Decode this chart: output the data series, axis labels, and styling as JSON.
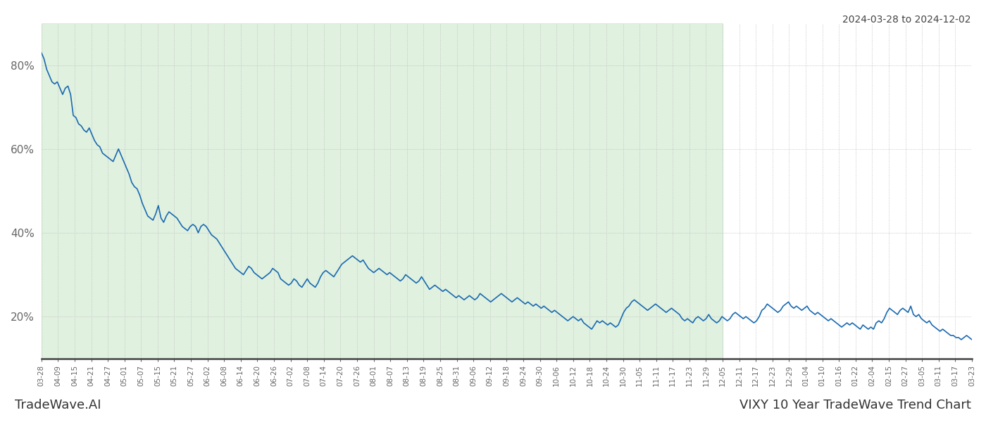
{
  "title_top_right": "2024-03-28 to 2024-12-02",
  "title_bottom_right": "VIXY 10 Year TradeWave Trend Chart",
  "title_bottom_left": "TradeWave.AI",
  "line_color": "#1a6ab0",
  "line_width": 1.2,
  "shaded_color": "#c8e6c8",
  "shaded_alpha": 0.55,
  "background_color": "#ffffff",
  "grid_color": "#bbbbbb",
  "grid_style": ":",
  "ylim": [
    10,
    90
  ],
  "yticks": [
    20,
    40,
    60,
    80
  ],
  "ytick_labels": [
    "20%",
    "40%",
    "60%",
    "80%"
  ],
  "x_labels": [
    "03-28",
    "04-09",
    "04-15",
    "04-21",
    "04-27",
    "05-01",
    "05-07",
    "05-15",
    "05-21",
    "05-27",
    "06-02",
    "06-08",
    "06-14",
    "06-20",
    "06-26",
    "07-02",
    "07-08",
    "07-14",
    "07-20",
    "07-26",
    "08-01",
    "08-07",
    "08-13",
    "08-19",
    "08-25",
    "08-31",
    "09-06",
    "09-12",
    "09-18",
    "09-24",
    "09-30",
    "10-06",
    "10-12",
    "10-18",
    "10-24",
    "10-30",
    "11-05",
    "11-11",
    "11-17",
    "11-23",
    "11-29",
    "12-05",
    "12-11",
    "12-17",
    "12-23",
    "12-29",
    "01-04",
    "01-10",
    "01-16",
    "01-22",
    "02-04",
    "02-15",
    "02-27",
    "03-05",
    "03-11",
    "03-17",
    "03-23"
  ],
  "shaded_x_start_label": "03-28",
  "shaded_x_end_label": "12-05",
  "data_y": [
    83.0,
    81.5,
    79.0,
    77.5,
    76.0,
    75.5,
    76.0,
    74.5,
    73.0,
    74.5,
    75.0,
    73.0,
    68.0,
    67.5,
    66.0,
    65.5,
    64.5,
    64.0,
    65.0,
    63.5,
    62.0,
    61.0,
    60.5,
    59.0,
    58.5,
    58.0,
    57.5,
    57.0,
    58.5,
    60.0,
    58.5,
    57.0,
    55.5,
    54.0,
    52.0,
    51.0,
    50.5,
    49.0,
    47.0,
    45.5,
    44.0,
    43.5,
    43.0,
    44.5,
    46.5,
    43.5,
    42.5,
    44.0,
    45.0,
    44.5,
    44.0,
    43.5,
    42.5,
    41.5,
    41.0,
    40.5,
    41.5,
    42.0,
    41.5,
    40.0,
    41.5,
    42.0,
    41.5,
    40.5,
    39.5,
    39.0,
    38.5,
    37.5,
    36.5,
    35.5,
    34.5,
    33.5,
    32.5,
    31.5,
    31.0,
    30.5,
    30.0,
    31.0,
    32.0,
    31.5,
    30.5,
    30.0,
    29.5,
    29.0,
    29.5,
    30.0,
    30.5,
    31.5,
    31.0,
    30.5,
    29.0,
    28.5,
    28.0,
    27.5,
    28.0,
    29.0,
    28.5,
    27.5,
    27.0,
    28.0,
    29.0,
    28.0,
    27.5,
    27.0,
    28.0,
    29.5,
    30.5,
    31.0,
    30.5,
    30.0,
    29.5,
    30.5,
    31.5,
    32.5,
    33.0,
    33.5,
    34.0,
    34.5,
    34.0,
    33.5,
    33.0,
    33.5,
    32.5,
    31.5,
    31.0,
    30.5,
    31.0,
    31.5,
    31.0,
    30.5,
    30.0,
    30.5,
    30.0,
    29.5,
    29.0,
    28.5,
    29.0,
    30.0,
    29.5,
    29.0,
    28.5,
    28.0,
    28.5,
    29.5,
    28.5,
    27.5,
    26.5,
    27.0,
    27.5,
    27.0,
    26.5,
    26.0,
    26.5,
    26.0,
    25.5,
    25.0,
    24.5,
    25.0,
    24.5,
    24.0,
    24.5,
    25.0,
    24.5,
    24.0,
    24.5,
    25.5,
    25.0,
    24.5,
    24.0,
    23.5,
    24.0,
    24.5,
    25.0,
    25.5,
    25.0,
    24.5,
    24.0,
    23.5,
    24.0,
    24.5,
    24.0,
    23.5,
    23.0,
    23.5,
    23.0,
    22.5,
    23.0,
    22.5,
    22.0,
    22.5,
    22.0,
    21.5,
    21.0,
    21.5,
    21.0,
    20.5,
    20.0,
    19.5,
    19.0,
    19.5,
    20.0,
    19.5,
    19.0,
    19.5,
    18.5,
    18.0,
    17.5,
    17.0,
    18.0,
    19.0,
    18.5,
    19.0,
    18.5,
    18.0,
    18.5,
    18.0,
    17.5,
    18.0,
    19.5,
    21.0,
    22.0,
    22.5,
    23.5,
    24.0,
    23.5,
    23.0,
    22.5,
    22.0,
    21.5,
    22.0,
    22.5,
    23.0,
    22.5,
    22.0,
    21.5,
    21.0,
    21.5,
    22.0,
    21.5,
    21.0,
    20.5,
    19.5,
    19.0,
    19.5,
    19.0,
    18.5,
    19.5,
    20.0,
    19.5,
    19.0,
    19.5,
    20.5,
    19.5,
    19.0,
    18.5,
    19.0,
    20.0,
    19.5,
    19.0,
    19.5,
    20.5,
    21.0,
    20.5,
    20.0,
    19.5,
    20.0,
    19.5,
    19.0,
    18.5,
    19.0,
    20.0,
    21.5,
    22.0,
    23.0,
    22.5,
    22.0,
    21.5,
    21.0,
    21.5,
    22.5,
    23.0,
    23.5,
    22.5,
    22.0,
    22.5,
    22.0,
    21.5,
    22.0,
    22.5,
    21.5,
    21.0,
    20.5,
    21.0,
    20.5,
    20.0,
    19.5,
    19.0,
    19.5,
    19.0,
    18.5,
    18.0,
    17.5,
    18.0,
    18.5,
    18.0,
    18.5,
    18.0,
    17.5,
    17.0,
    18.0,
    17.5,
    17.0,
    17.5,
    17.0,
    18.5,
    19.0,
    18.5,
    19.5,
    21.0,
    22.0,
    21.5,
    21.0,
    20.5,
    21.5,
    22.0,
    21.5,
    21.0,
    22.5,
    20.5,
    20.0,
    20.5,
    19.5,
    19.0,
    18.5,
    19.0,
    18.0,
    17.5,
    17.0,
    16.5,
    17.0,
    16.5,
    16.0,
    15.5,
    15.5,
    15.0,
    15.0,
    14.5,
    15.0,
    15.5,
    15.0,
    14.5
  ]
}
